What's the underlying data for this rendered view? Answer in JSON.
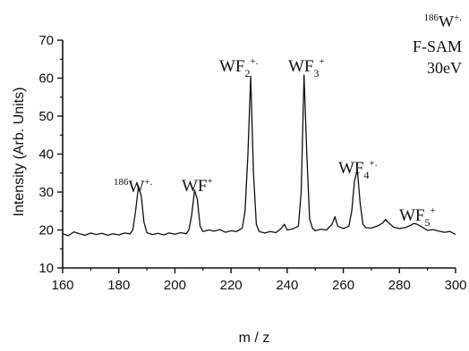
{
  "chart_data": {
    "type": "line",
    "xlabel": "m / z",
    "ylabel": "Intensity (Arb. Units)",
    "xlim": [
      160,
      300
    ],
    "ylim": [
      10,
      70
    ],
    "x_ticks": [
      160,
      180,
      200,
      220,
      240,
      260,
      280,
      300
    ],
    "y_ticks": [
      10,
      20,
      30,
      40,
      50,
      60,
      70
    ],
    "grid": false,
    "legend": "none",
    "series": [
      {
        "color": "#111111",
        "x": [
          160,
          162,
          164,
          166,
          168,
          170,
          172,
          174,
          176,
          178,
          180,
          182,
          184,
          185,
          186,
          187,
          188,
          189,
          190,
          192,
          194,
          196,
          198,
          200,
          202,
          204,
          205,
          206,
          207,
          208,
          209,
          210,
          212,
          214,
          216,
          218,
          220,
          222,
          224,
          225,
          226,
          227,
          228,
          229,
          230,
          232,
          234,
          236,
          238,
          239,
          240,
          242,
          244,
          245,
          246,
          247,
          248,
          249,
          250,
          252,
          254,
          256,
          257,
          258,
          260,
          262,
          263,
          264,
          265,
          266,
          267,
          268,
          270,
          272,
          274,
          275,
          276,
          278,
          280,
          282,
          284,
          285,
          286,
          287,
          288,
          290,
          292,
          294,
          296,
          298,
          300
        ],
        "y": [
          19,
          18.5,
          19.5,
          19,
          18.6,
          19.2,
          18.8,
          19.1,
          18.6,
          19,
          18.7,
          19.2,
          19,
          20,
          25,
          31.5,
          29,
          22,
          19.3,
          18.8,
          19.1,
          18.7,
          19.2,
          18.9,
          19.3,
          19,
          20,
          24,
          30.5,
          28,
          21,
          19.6,
          20,
          19.7,
          20.1,
          19.4,
          19.8,
          19.6,
          20.5,
          25,
          40,
          60.5,
          35,
          21.5,
          19.6,
          19.2,
          19.6,
          19.3,
          20.5,
          21.5,
          20,
          20.3,
          21,
          30,
          60.8,
          40,
          23,
          20.5,
          19.8,
          20.2,
          20,
          21.5,
          23.5,
          21,
          20.4,
          21,
          25,
          33,
          35.8,
          27,
          21.5,
          20.6,
          20.5,
          21,
          21.8,
          22.8,
          22,
          20.7,
          20.4,
          20.6,
          21.2,
          21.7,
          21.6,
          21.2,
          20.8,
          19.9,
          20.1,
          19.7,
          19.4,
          19.6,
          18.8
        ]
      }
    ],
    "annotations": [
      {
        "text": "186",
        "sup": "+.",
        "base": "W",
        "x": 187,
        "y": 31.5
      },
      {
        "text": "WF",
        "sup": "+",
        "x": 207,
        "y": 30.5
      },
      {
        "text": "WF",
        "sub": "2",
        "sup": "+.",
        "x": 227,
        "y": 60.5
      },
      {
        "text": "WF",
        "sub": "3",
        "sup": "+",
        "x": 246,
        "y": 60.8
      },
      {
        "text": "WF",
        "sub": "4",
        "sup": "+.",
        "x": 265,
        "y": 35.8
      },
      {
        "text": "WF",
        "sub": "5",
        "sup": "+",
        "x": 287,
        "y": 21.5
      }
    ],
    "corner_text": {
      "ion_prefix": "186",
      "ion_base": "W",
      "ion_sup": "+.",
      "line2": "F-SAM",
      "line3": "30eV"
    }
  }
}
